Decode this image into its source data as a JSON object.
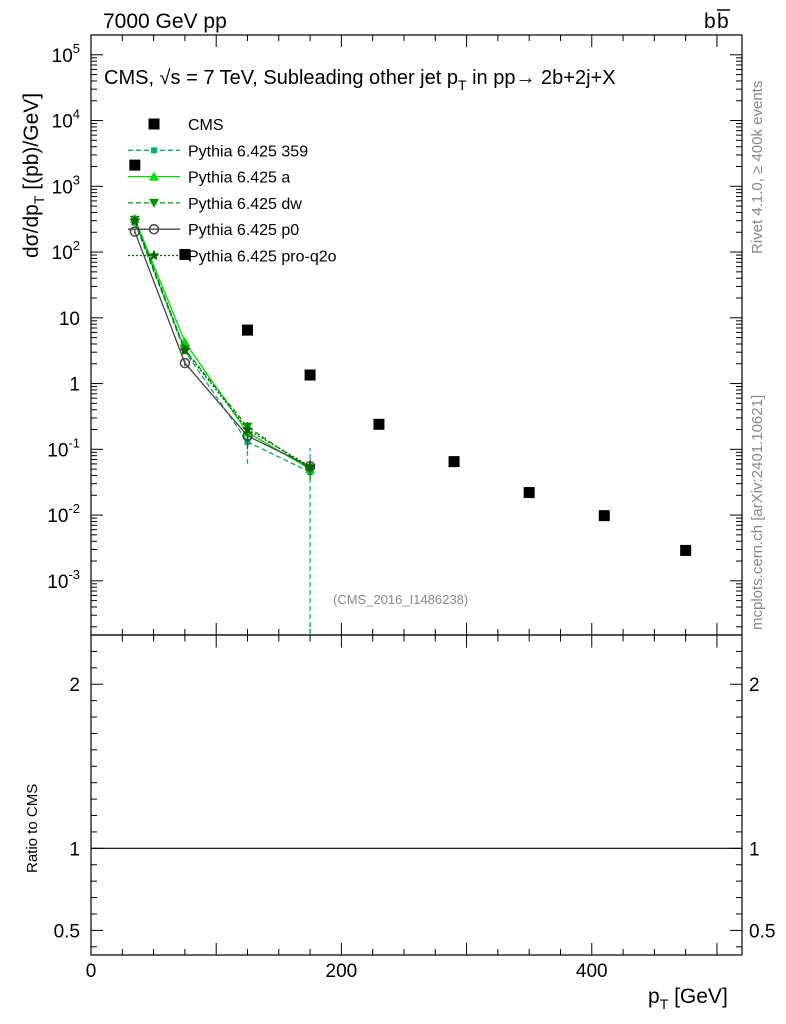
{
  "header": {
    "left": "7000 GeV pp",
    "right": "b",
    "right_bar": "b"
  },
  "side": {
    "rivet": "Rivet 4.1.0, ≥ 400k events",
    "mcplots": "mcplots.cern.ch [arXiv:2401.10621]"
  },
  "chart_data": [
    {
      "type": "scatter",
      "title": {
        "prefix": "CMS, √s = 7 TeV, Subleading other jet p",
        "sub": "T",
        "suffix": " in pp→  2b+2j+X"
      },
      "analysis_id": "(CMS_2016_I1486238)",
      "ylabel": {
        "main": "dσ/dp",
        "sub": "T",
        "tail": " [(pb)/GeV]"
      },
      "xlabel": {
        "main": "p",
        "sub": "T",
        "tail": " [GeV]"
      },
      "xlim": [
        0,
        520
      ],
      "ylim": [
        0.00015,
        200000
      ],
      "yscale": "log",
      "ytick_labels": [
        "10^-3",
        "10^-2",
        "10^-1",
        "1",
        "10",
        "10^2",
        "10^3",
        "10^4",
        "10^5"
      ],
      "xtick_labels": [
        "0",
        "200",
        "400"
      ],
      "series": [
        {
          "name": "CMS",
          "color": "#000000",
          "marker": "square",
          "line": "none",
          "x": [
            35,
            75,
            125,
            175,
            230,
            290,
            350,
            410,
            475
          ],
          "y": [
            2100,
            92,
            6.5,
            1.35,
            0.24,
            0.065,
            0.022,
            0.0098,
            0.0029
          ]
        },
        {
          "name": "Pythia 6.425 359",
          "color": "#00b070",
          "marker": "small-square",
          "line": "dashed",
          "x": [
            35,
            75,
            125,
            175
          ],
          "y": [
            280,
            3.1,
            0.13,
            0.045
          ],
          "err_low": [
            20,
            0.3,
            0.07,
            0.0449
          ],
          "err_high": [
            20,
            0.3,
            0.09,
            0.06
          ]
        },
        {
          "name": "Pythia 6.425 a",
          "color": "#00dd00",
          "marker": "triangle-up",
          "line": "solid",
          "x": [
            35,
            75,
            125,
            175
          ],
          "y": [
            320,
            4.3,
            0.18,
            0.05
          ],
          "err_low": [
            20,
            0.4,
            0.05,
            0.015
          ],
          "err_high": [
            20,
            0.4,
            0.05,
            0.015
          ]
        },
        {
          "name": "Pythia 6.425 dw",
          "color": "#009900",
          "marker": "triangle-down",
          "line": "dashed",
          "x": [
            35,
            75,
            125,
            175
          ],
          "y": [
            310,
            3.3,
            0.22,
            0.05
          ],
          "err_low": [
            20,
            0.3,
            0.06,
            0.015
          ],
          "err_high": [
            20,
            0.3,
            0.06,
            0.015
          ]
        },
        {
          "name": "Pythia 6.425 p0",
          "color": "#444444",
          "marker": "open-circle",
          "line": "solid",
          "x": [
            35,
            75,
            125,
            175
          ],
          "y": [
            205,
            2.05,
            0.16,
            0.055
          ],
          "err_low": [
            15,
            0.2,
            0.06,
            0.015
          ],
          "err_high": [
            15,
            0.2,
            0.06,
            0.015
          ]
        },
        {
          "name": "Pythia 6.425 pro-q2o",
          "color": "#006600",
          "marker": "star",
          "line": "dotted",
          "x": [
            35,
            75,
            125,
            175
          ],
          "y": [
            300,
            3.2,
            0.2,
            0.055
          ],
          "err_low": [
            20,
            0.3,
            0.06,
            0.015
          ],
          "err_high": [
            20,
            0.3,
            0.06,
            0.015
          ]
        }
      ]
    },
    {
      "type": "line",
      "ylabel": "Ratio to CMS",
      "ylim": [
        0.35,
        2.3
      ],
      "ytick_labels": [
        "0.5",
        "1",
        "2"
      ],
      "reference_value": 1
    }
  ]
}
